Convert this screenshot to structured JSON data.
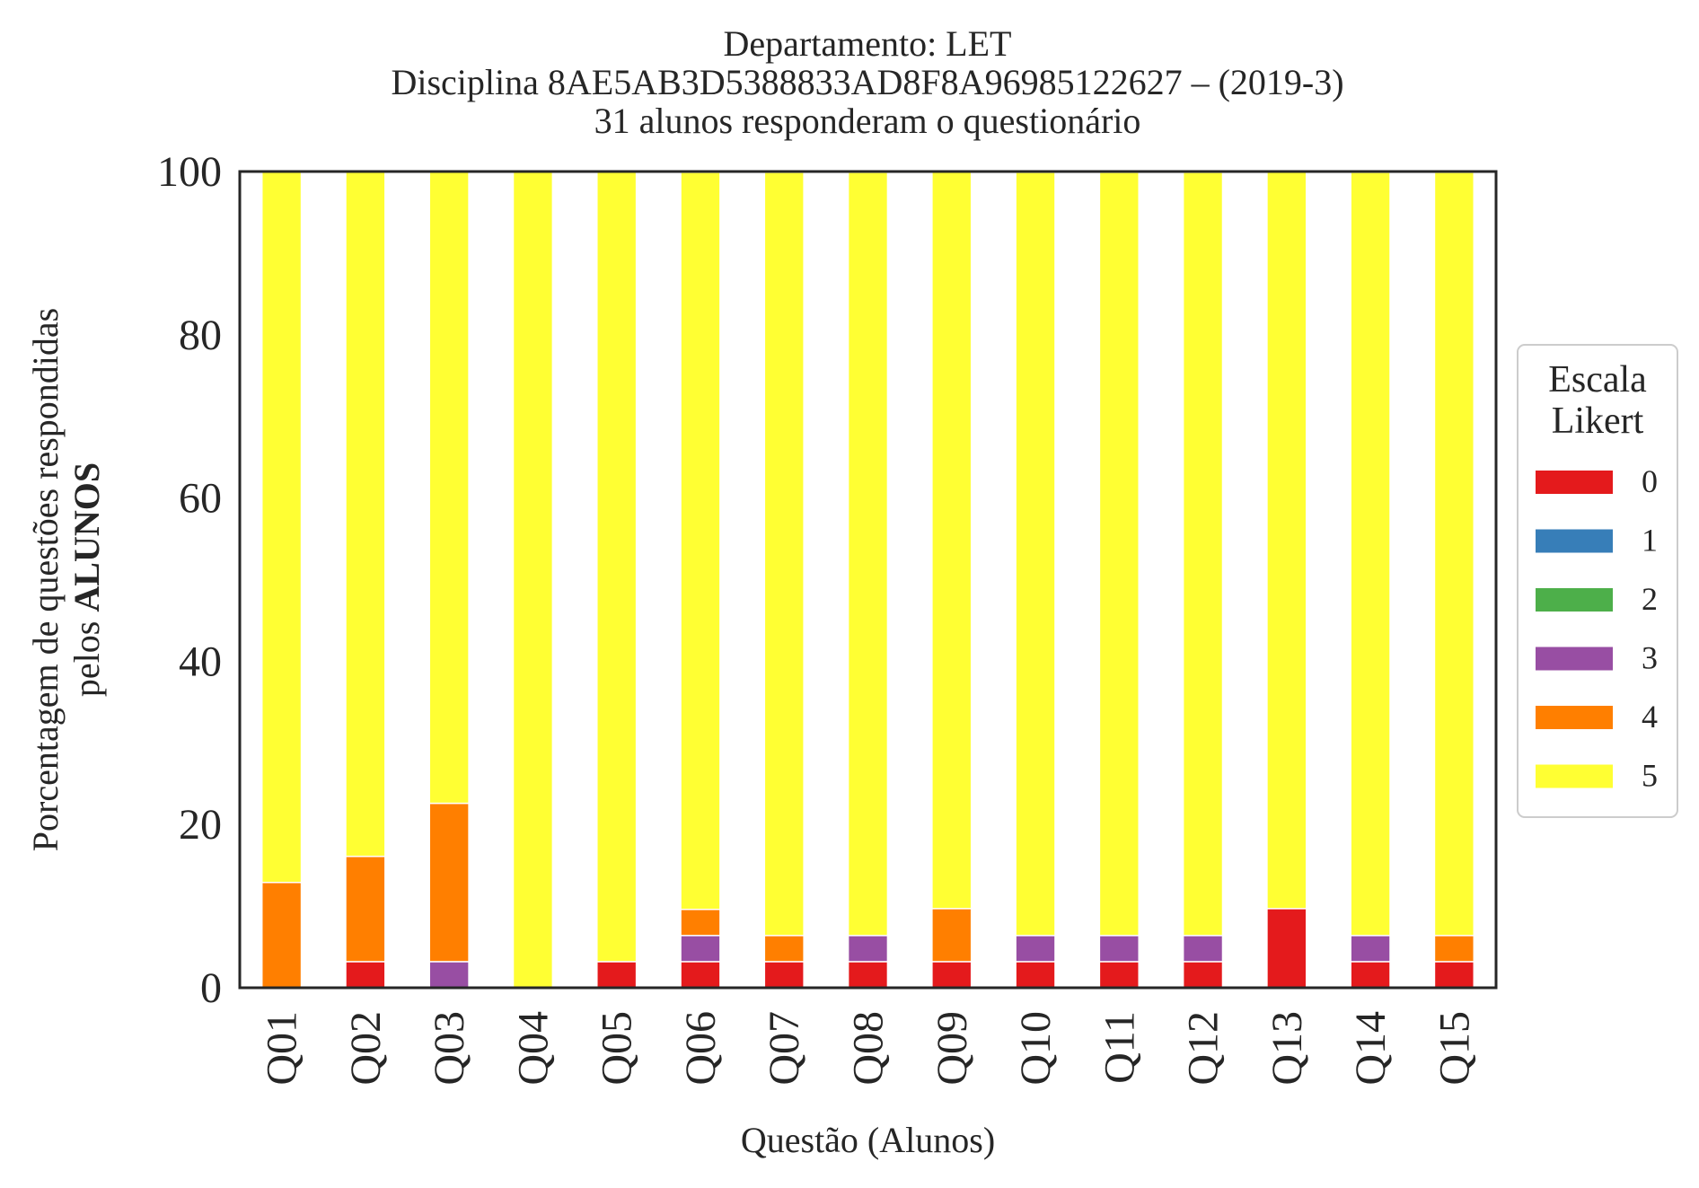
{
  "chart_data": {
    "type": "bar",
    "stacked": true,
    "title_lines": [
      "Departamento: LET",
      "Disciplina 8AE5AB3D5388833AD8F8A96985122627 – (2019-3)",
      "31 alunos responderam o questionário"
    ],
    "xlabel": "Questão (Alunos)",
    "ylabel_line1": "Porcentagem de questões respondidas",
    "ylabel_line2_prefix": "pelos ",
    "ylabel_line2_bold": "ALUNOS",
    "ylim": [
      0,
      100
    ],
    "yticks": [
      "0",
      "20",
      "40",
      "60",
      "80",
      "100"
    ],
    "grid": false,
    "legend_placement": "right",
    "legend_title_lines": [
      "Escala",
      "Likert"
    ],
    "categories": [
      "Q01",
      "Q02",
      "Q03",
      "Q04",
      "Q05",
      "Q06",
      "Q07",
      "Q08",
      "Q09",
      "Q10",
      "Q11",
      "Q12",
      "Q13",
      "Q14",
      "Q15"
    ],
    "series": [
      {
        "name": "0",
        "color": "#e41a1c",
        "values": [
          0,
          3.2,
          0,
          0,
          3.2,
          3.2,
          3.2,
          3.2,
          3.2,
          3.2,
          3.2,
          3.2,
          9.7,
          3.2,
          3.2
        ]
      },
      {
        "name": "1",
        "color": "#377eb8",
        "values": [
          0,
          0,
          0,
          0,
          0,
          0,
          0,
          0,
          0,
          0,
          0,
          0,
          0,
          0,
          0
        ]
      },
      {
        "name": "2",
        "color": "#4daf4a",
        "values": [
          0,
          0,
          0,
          0,
          0,
          0,
          0,
          0,
          0,
          0,
          0,
          0,
          0,
          0,
          0
        ]
      },
      {
        "name": "3",
        "color": "#984ea3",
        "values": [
          0,
          0,
          3.2,
          0,
          0,
          3.2,
          0,
          3.2,
          0,
          3.2,
          3.2,
          3.2,
          0,
          3.2,
          0
        ]
      },
      {
        "name": "4",
        "color": "#ff7f00",
        "values": [
          12.9,
          12.9,
          19.4,
          0,
          0,
          3.2,
          3.2,
          0,
          6.5,
          0,
          0,
          0,
          0,
          0,
          3.2
        ]
      },
      {
        "name": "5",
        "color": "#ffff33",
        "values": [
          87.1,
          83.9,
          77.4,
          100,
          96.8,
          90.3,
          93.5,
          93.5,
          90.3,
          93.5,
          93.5,
          93.5,
          90.3,
          93.5,
          93.5
        ]
      }
    ]
  }
}
